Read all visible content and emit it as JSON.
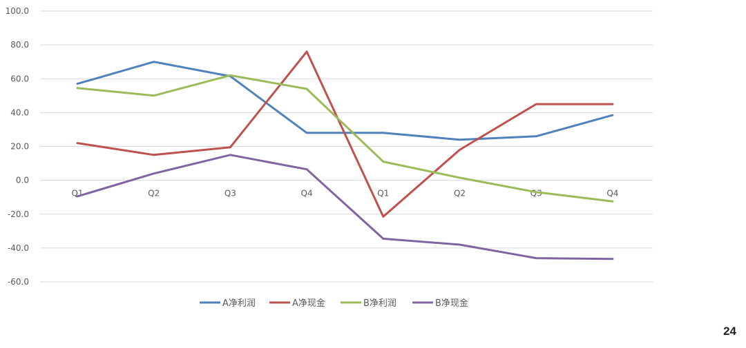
{
  "chart_data": {
    "type": "line",
    "title": "",
    "xlabel": "",
    "ylabel": "",
    "categories": [
      "Q1",
      "Q2",
      "Q3",
      "Q4",
      "Q1",
      "Q2",
      "Q3",
      "Q4"
    ],
    "ylim": [
      -60,
      100
    ],
    "yticks": [
      "100.0",
      "80.0",
      "60.0",
      "40.0",
      "20.0",
      "0.0",
      "-20.0",
      "-40.0",
      "-60.0"
    ],
    "grid": true,
    "legend": "bottom",
    "series": [
      {
        "name": "A净利润",
        "color": "#4F81BD",
        "values": [
          57,
          70,
          61.5,
          28,
          28,
          24,
          26,
          38.5
        ]
      },
      {
        "name": "A净现金",
        "color": "#C0504D",
        "values": [
          22,
          15,
          19.5,
          76,
          -21.5,
          18,
          45,
          45
        ]
      },
      {
        "name": "B净利润",
        "color": "#9BBB59",
        "values": [
          54.5,
          50,
          62,
          54,
          11,
          1.5,
          -7,
          -12.5
        ]
      },
      {
        "name": "B净现金",
        "color": "#8064A2",
        "values": [
          -9.5,
          4,
          15,
          6.5,
          -34.5,
          -38,
          -46,
          -46.5
        ]
      }
    ]
  },
  "page_number": "24"
}
